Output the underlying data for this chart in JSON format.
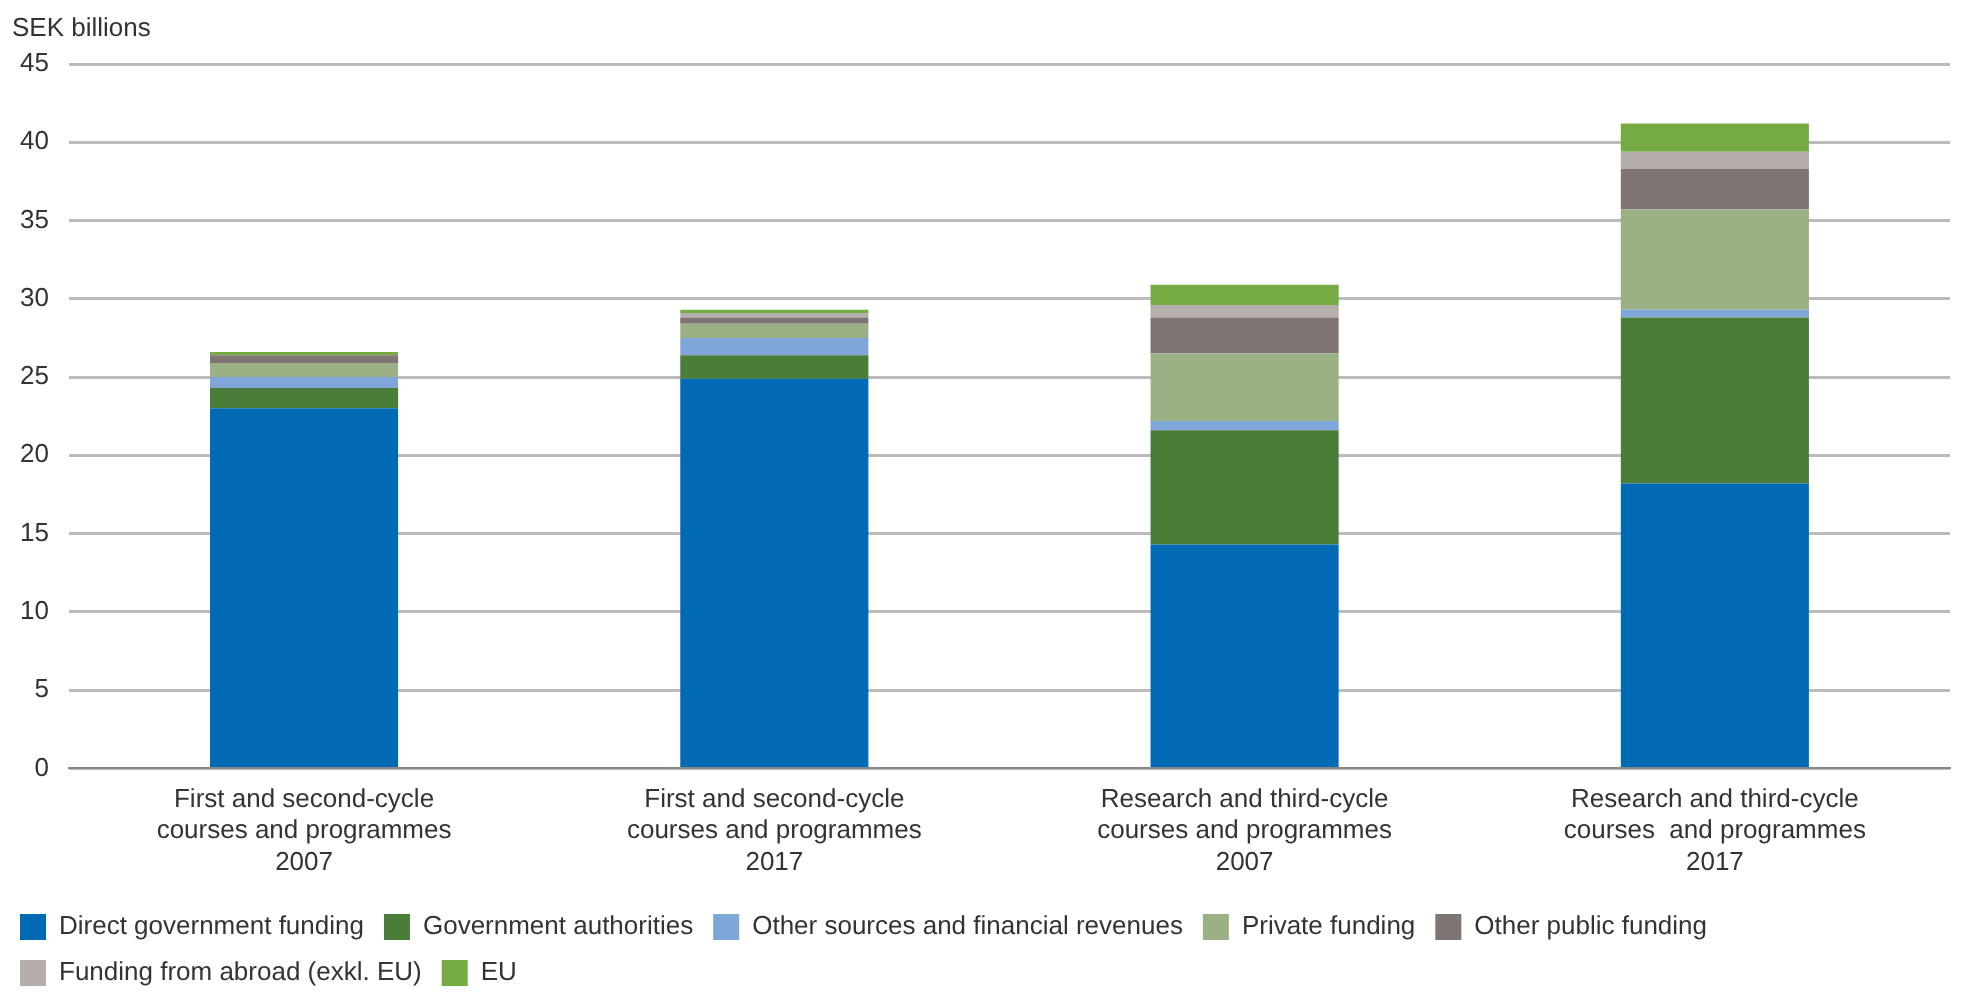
{
  "chart_data": {
    "type": "bar",
    "stacked": true,
    "ylabel": "SEK billions",
    "categories": [
      "First and second-cycle\ncourses and programmes\n2007",
      "First and second-cycle\ncourses and programmes\n2017",
      "Research and third-cycle\ncourses and programmes\n2007",
      "Research and third-cycle\ncourses  and programmes\n2017"
    ],
    "series": [
      {
        "name": "Direct government funding",
        "color": "#006ab4",
        "values": [
          23.0,
          24.9,
          14.3,
          18.2
        ]
      },
      {
        "name": "Government authorities",
        "color": "#4a7d38",
        "values": [
          1.3,
          1.5,
          7.3,
          10.6
        ]
      },
      {
        "name": "Other sources and financial revenues",
        "color": "#7fa6d8",
        "values": [
          0.7,
          1.1,
          0.6,
          0.5
        ]
      },
      {
        "name": "Private funding",
        "color": "#9cb085",
        "values": [
          0.9,
          0.9,
          4.3,
          6.4
        ]
      },
      {
        "name": "Other public funding",
        "color": "#7e7574",
        "values": [
          0.5,
          0.4,
          2.3,
          2.6
        ]
      },
      {
        "name": "Funding from abroad (exkl. EU)",
        "color": "#b5aeab",
        "values": [
          null,
          0.3,
          0.8,
          1.1
        ]
      },
      {
        "name": "EU",
        "color": "#76ab44",
        "values": [
          0.2,
          0.2,
          1.3,
          1.8
        ]
      }
    ],
    "ylim": [
      0,
      45
    ],
    "yticks": [
      0,
      5,
      10,
      15,
      20,
      25,
      30,
      35,
      40,
      45
    ],
    "grid": "y",
    "legend": "bottom"
  }
}
